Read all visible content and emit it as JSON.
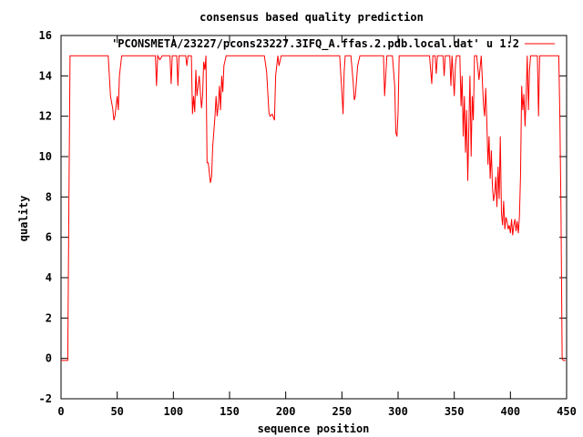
{
  "chart_data": {
    "type": "line",
    "title": "consensus based quality prediction",
    "xlabel": "sequence position",
    "ylabel": "quality",
    "xlim": [
      0,
      450
    ],
    "ylim": [
      -2,
      16
    ],
    "xticks": [
      0,
      50,
      100,
      150,
      200,
      250,
      300,
      350,
      400,
      450
    ],
    "yticks": [
      -2,
      0,
      2,
      4,
      6,
      8,
      10,
      12,
      14,
      16
    ],
    "grid": false,
    "legend_position": "top-right",
    "series": [
      {
        "name": "'PCONSMETA/23227/pcons23227.3IFQ_A.ffas.2.pdb.local.dat' u 1:2",
        "color": "#ff0000",
        "points": [
          [
            0,
            -0.1
          ],
          [
            6,
            -0.1
          ],
          [
            7,
            7.5
          ],
          [
            8,
            15
          ],
          [
            42,
            15
          ],
          [
            44,
            13
          ],
          [
            46,
            12.4
          ],
          [
            47,
            11.8
          ],
          [
            48,
            12
          ],
          [
            50,
            13
          ],
          [
            51,
            12.3
          ],
          [
            52,
            14
          ],
          [
            54,
            15
          ],
          [
            84,
            15
          ],
          [
            85,
            13.5
          ],
          [
            86,
            15
          ],
          [
            88,
            14.8
          ],
          [
            90,
            15
          ],
          [
            97,
            15
          ],
          [
            98,
            13.6
          ],
          [
            99,
            15
          ],
          [
            103,
            15
          ],
          [
            104,
            13.5
          ],
          [
            105,
            15
          ],
          [
            111,
            15
          ],
          [
            112,
            14.5
          ],
          [
            113,
            15
          ],
          [
            116,
            15
          ],
          [
            117,
            12.1
          ],
          [
            118,
            13
          ],
          [
            119,
            12.2
          ],
          [
            120,
            14.3
          ],
          [
            121,
            13
          ],
          [
            123,
            14
          ],
          [
            125,
            12.4
          ],
          [
            126,
            13
          ],
          [
            127,
            14.7
          ],
          [
            128,
            14.3
          ],
          [
            129,
            15
          ],
          [
            130,
            9.7
          ],
          [
            131,
            9.7
          ],
          [
            132,
            9.2
          ],
          [
            133,
            8.7
          ],
          [
            134,
            9
          ],
          [
            135,
            10.5
          ],
          [
            136,
            11.2
          ],
          [
            137,
            12
          ],
          [
            138,
            13
          ],
          [
            139,
            12
          ],
          [
            140,
            12.6
          ],
          [
            141,
            13.5
          ],
          [
            142,
            12.3
          ],
          [
            143,
            14
          ],
          [
            144,
            13.2
          ],
          [
            145,
            14.5
          ],
          [
            147,
            15
          ],
          [
            181,
            15
          ],
          [
            183,
            14.2
          ],
          [
            185,
            12.2
          ],
          [
            186,
            12
          ],
          [
            188,
            12.1
          ],
          [
            190,
            11.8
          ],
          [
            191,
            14
          ],
          [
            193,
            15
          ],
          [
            194,
            14.5
          ],
          [
            196,
            15
          ],
          [
            248,
            15
          ],
          [
            250,
            13.2
          ],
          [
            251,
            12.1
          ],
          [
            252,
            14.2
          ],
          [
            253,
            15
          ],
          [
            258,
            15
          ],
          [
            260,
            13.7
          ],
          [
            261,
            12.8
          ],
          [
            262,
            13
          ],
          [
            264,
            14.5
          ],
          [
            266,
            15
          ],
          [
            287,
            15
          ],
          [
            288,
            13
          ],
          [
            290,
            15
          ],
          [
            295,
            15
          ],
          [
            297,
            13.5
          ],
          [
            298,
            11.2
          ],
          [
            299,
            11
          ],
          [
            300,
            12.2
          ],
          [
            301,
            15
          ],
          [
            328,
            15
          ],
          [
            330,
            13.6
          ],
          [
            331,
            15
          ],
          [
            333,
            15
          ],
          [
            334,
            14.1
          ],
          [
            335,
            15
          ],
          [
            340,
            15
          ],
          [
            341,
            14
          ],
          [
            342,
            15
          ],
          [
            346,
            15
          ],
          [
            347,
            13.5
          ],
          [
            348,
            15
          ],
          [
            350,
            13
          ],
          [
            351,
            14.5
          ],
          [
            352,
            15
          ],
          [
            355,
            15
          ],
          [
            356,
            12.5
          ],
          [
            357,
            14
          ],
          [
            358,
            11
          ],
          [
            359,
            13
          ],
          [
            360,
            10.2
          ],
          [
            361,
            12.3
          ],
          [
            362,
            8.8
          ],
          [
            363,
            11.5
          ],
          [
            364,
            14
          ],
          [
            365,
            10
          ],
          [
            366,
            13
          ],
          [
            367,
            11.8
          ],
          [
            368,
            15
          ],
          [
            370,
            15
          ],
          [
            372,
            13.8
          ],
          [
            374,
            15
          ],
          [
            376,
            12.6
          ],
          [
            377,
            12
          ],
          [
            378,
            13.4
          ],
          [
            379,
            11.8
          ],
          [
            380,
            9.6
          ],
          [
            381,
            11
          ],
          [
            382,
            8.9
          ],
          [
            383,
            10.3
          ],
          [
            384,
            8.5
          ],
          [
            385,
            7.8
          ],
          [
            386,
            8.2
          ],
          [
            387,
            9
          ],
          [
            388,
            7.5
          ],
          [
            389,
            9.5
          ],
          [
            390,
            7.9
          ],
          [
            391,
            11
          ],
          [
            392,
            7.2
          ],
          [
            393,
            6.6
          ],
          [
            394,
            7.8
          ],
          [
            395,
            6.4
          ],
          [
            396,
            7
          ],
          [
            397,
            6.8
          ],
          [
            398,
            6.4
          ],
          [
            399,
            6.6
          ],
          [
            400,
            6.2
          ],
          [
            401,
            6.9
          ],
          [
            402,
            6.1
          ],
          [
            403,
            6.6
          ],
          [
            404,
            6.9
          ],
          [
            405,
            6.3
          ],
          [
            406,
            6.8
          ],
          [
            407,
            6.2
          ],
          [
            408,
            7
          ],
          [
            409,
            9
          ],
          [
            410,
            13.5
          ],
          [
            411,
            12.3
          ],
          [
            412,
            13.1
          ],
          [
            413,
            11.5
          ],
          [
            414,
            13
          ],
          [
            415,
            15
          ],
          [
            416,
            12.3
          ],
          [
            417,
            14.3
          ],
          [
            418,
            15
          ],
          [
            424,
            15
          ],
          [
            425,
            12
          ],
          [
            426,
            15
          ],
          [
            443,
            15
          ],
          [
            444,
            12
          ],
          [
            445,
            7.5
          ],
          [
            446,
            0
          ],
          [
            447,
            -0.1
          ],
          [
            449,
            -0.1
          ]
        ]
      }
    ]
  }
}
